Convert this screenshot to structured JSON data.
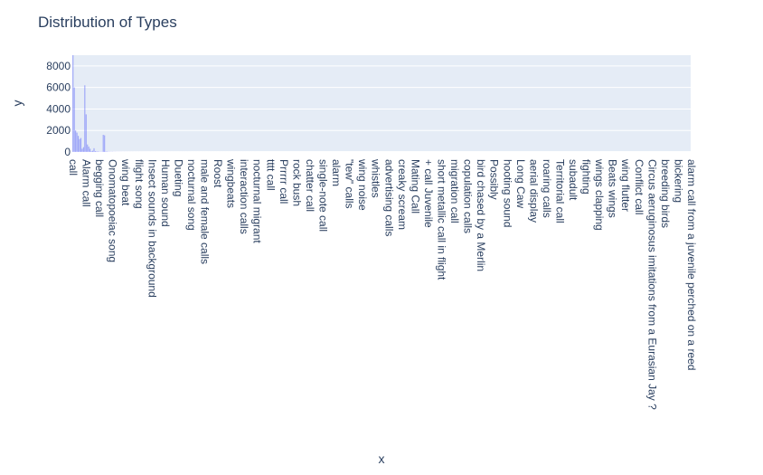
{
  "chart_data": {
    "type": "bar",
    "title": "Distribution of Types",
    "xlabel": "x",
    "ylabel": "y",
    "ylim": [
      0,
      9000
    ],
    "yticks": [
      0,
      2000,
      4000,
      6000,
      8000
    ],
    "yticks_text": [
      "0",
      "2000",
      "4000",
      "6000",
      "8000"
    ],
    "grid": true,
    "plot_bg": "#e5ecf6",
    "bar_color": "#636efa",
    "tick_labels": [
      "call",
      "Alarm call",
      "begging call",
      "Onomatopoeiac song",
      "wing beat",
      "flight song",
      "Insect sounds in background",
      "Human sound",
      "Dueting",
      "nocturnal song",
      "male and female calls",
      "Roost",
      "wingbeats",
      "interaction calls",
      "nocturnal migrant",
      "tttt call",
      "Prrrrr call",
      "rock bush",
      "chatter call",
      "single-note call",
      "alarm",
      "\"tew\" calls",
      "wing noise",
      "whistles",
      "advertising calls",
      "creaky scream",
      "Mating Call",
      "+ call Juvenile",
      "short metallic call in flight",
      "migration call",
      "copulation calls",
      "bird chased by a Merlin",
      "Possibly",
      "hooting sound",
      "Long Caw",
      "aerial display",
      "roaring calls",
      "Territorial call",
      "subadult",
      "fighting",
      "wings clapping",
      "Beats wings",
      "wing flutter",
      "Conflict call",
      "Circus aeruginosus imitations from a Eurasian Jay ?",
      "breeding birds",
      "bickering",
      "alarm call from a juvenile perched on a reed"
    ],
    "values": [
      9000,
      6000,
      2000,
      1800,
      1500,
      1200,
      1300,
      300,
      450,
      6200,
      3500,
      700,
      500,
      300,
      80,
      120,
      350,
      80,
      60,
      50,
      40,
      30,
      30,
      1600,
      1550,
      50,
      40,
      30,
      20,
      20,
      20,
      15,
      15,
      12,
      10,
      10,
      10,
      8,
      8,
      8,
      8,
      6,
      6,
      6,
      6,
      6,
      5,
      5,
      5,
      5,
      5,
      4,
      4,
      4,
      4,
      4,
      4,
      4,
      4,
      4,
      3,
      3,
      3,
      3,
      3,
      3,
      3,
      3,
      3,
      3,
      3,
      3,
      3,
      3,
      3,
      3,
      3,
      3,
      3,
      3,
      3,
      3,
      3,
      3,
      3,
      3,
      3,
      3,
      3,
      3,
      2,
      2,
      2,
      2,
      2,
      2,
      2,
      2,
      2,
      2,
      2,
      2,
      2,
      2,
      2,
      2,
      2,
      2,
      2,
      2,
      2,
      2,
      2,
      2,
      2,
      2,
      2,
      2,
      2,
      2,
      2,
      2,
      2,
      2,
      2,
      2,
      2,
      2,
      2,
      2,
      2,
      2,
      2,
      2,
      2,
      2,
      2,
      2,
      2,
      2,
      1,
      1,
      1,
      1,
      1,
      1,
      1,
      1,
      1,
      1,
      1,
      1,
      1,
      1,
      1,
      1,
      1,
      1,
      1,
      1,
      1,
      1,
      1,
      1,
      1,
      1,
      1,
      1,
      1,
      1,
      1,
      1,
      1,
      1,
      1,
      1,
      1,
      1,
      1,
      1,
      1,
      1,
      1,
      1,
      1,
      1,
      1,
      1,
      1,
      1,
      1,
      1,
      1,
      1,
      1,
      1,
      1,
      1,
      1,
      1,
      1,
      1,
      1,
      1,
      1,
      1,
      1,
      1,
      1,
      1,
      1,
      1,
      1,
      1,
      1,
      1,
      1,
      1,
      1,
      1,
      1,
      1,
      1,
      1,
      1,
      1,
      1,
      1,
      1,
      1,
      1,
      1,
      1,
      1,
      1,
      1,
      1,
      1,
      1,
      1,
      1,
      1,
      1,
      1,
      1,
      1,
      1,
      1,
      1,
      1,
      1,
      1,
      1,
      1,
      1,
      1,
      1,
      1,
      1,
      1,
      1,
      1,
      1,
      1,
      1,
      1,
      1,
      1,
      1,
      1,
      1,
      1,
      1,
      1,
      1,
      1,
      1,
      1,
      1,
      1,
      1,
      1,
      1,
      1,
      1,
      1,
      1,
      1,
      1,
      1,
      1,
      1,
      1,
      1,
      1,
      1,
      1,
      1,
      1,
      1,
      1,
      1,
      1,
      1,
      1,
      1,
      1,
      1,
      1,
      1,
      1,
      1,
      1,
      1,
      1,
      1,
      1,
      1,
      1,
      1,
      1,
      1,
      1,
      1,
      1,
      1,
      1,
      1,
      1,
      1,
      1,
      1,
      1,
      1,
      1,
      1,
      1,
      1,
      1,
      1,
      1,
      1,
      1,
      1,
      1,
      1,
      1,
      1,
      1,
      1,
      1,
      1,
      1,
      1,
      1,
      1,
      1,
      1,
      1,
      1,
      1,
      1,
      1,
      1,
      1,
      1,
      1,
      1,
      1,
      1,
      1,
      1,
      1,
      1,
      1,
      1,
      1,
      1,
      1,
      1,
      1,
      1,
      1,
      1,
      1,
      1,
      1,
      1,
      1,
      1,
      1,
      1,
      1,
      1,
      1,
      1,
      1,
      1,
      1,
      1,
      1,
      1,
      1,
      1,
      1,
      1,
      1,
      1,
      1,
      1,
      1,
      1,
      1,
      1,
      1,
      1,
      1,
      1,
      1,
      1,
      1,
      1,
      1,
      1,
      1,
      1,
      1,
      1,
      1,
      1,
      1,
      1,
      1,
      1,
      1,
      1,
      1,
      1,
      1,
      1,
      1,
      1,
      1,
      1,
      1,
      1,
      1,
      1,
      1,
      1,
      1,
      1,
      1,
      1,
      1,
      1,
      1,
      1,
      1,
      1,
      1,
      1,
      1,
      1,
      1,
      1,
      1,
      1,
      1,
      1
    ]
  }
}
